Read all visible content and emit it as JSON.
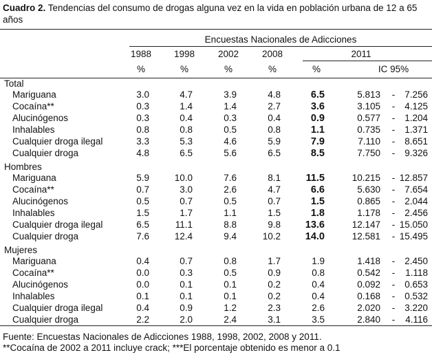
{
  "title": {
    "label": "Cuadro 2.",
    "text": "Tendencias del consumo de drogas alguna vez en la vida en población urbana de 12 a 65 años"
  },
  "table": {
    "group_header": "Encuestas Nacionales de Adicciones",
    "years": [
      "1988",
      "1998",
      "2002",
      "2008",
      "2011"
    ],
    "units": [
      "%",
      "%",
      "%",
      "%",
      "%",
      "IC 95%"
    ],
    "separator": "-",
    "sections": [
      {
        "name": "Total",
        "emphasis_2011": true,
        "rows": [
          {
            "label": "Mariguana",
            "values": [
              "3.0",
              "4.7",
              "3.9",
              "4.8",
              "6.5"
            ],
            "ci": [
              "5.813",
              "7.256"
            ]
          },
          {
            "label": "Cocaína**",
            "values": [
              "0.3",
              "1.4",
              "1.4",
              "2.7",
              "3.6"
            ],
            "ci": [
              "3.105",
              "4.125"
            ]
          },
          {
            "label": "Alucinógenos",
            "values": [
              "0.3",
              "0.4",
              "0.3",
              "0.4",
              "0.9"
            ],
            "ci": [
              "0.577",
              "1.204"
            ]
          },
          {
            "label": "Inhalables",
            "values": [
              "0.8",
              "0.8",
              "0.5",
              "0.8",
              "1.1"
            ],
            "ci": [
              "0.735",
              "1.371"
            ]
          },
          {
            "label": "Cualquier droga ilegal",
            "values": [
              "3.3",
              "5.3",
              "4.6",
              "5.9",
              "7.9"
            ],
            "ci": [
              "7.110",
              "8.651"
            ]
          },
          {
            "label": "Cualquier droga",
            "values": [
              "4.8",
              "6.5",
              "5.6",
              "6.5",
              "8.5"
            ],
            "ci": [
              "7.750",
              "9.326"
            ]
          }
        ]
      },
      {
        "name": "Hombres",
        "emphasis_2011": true,
        "rows": [
          {
            "label": "Mariguana",
            "values": [
              "5.9",
              "10.0",
              "7.6",
              "8.1",
              "11.5"
            ],
            "ci": [
              "10.215",
              "12.857"
            ]
          },
          {
            "label": "Cocaína**",
            "values": [
              "0.7",
              "3.0",
              "2.6",
              "4.7",
              "6.6"
            ],
            "ci": [
              "5.630",
              "7.654"
            ]
          },
          {
            "label": "Alucinógenos",
            "values": [
              "0.5",
              "0.7",
              "0.5",
              "0.7",
              "1.5"
            ],
            "ci": [
              "0.865",
              "2.044"
            ]
          },
          {
            "label": "Inhalables",
            "values": [
              "1.5",
              "1.7",
              "1.1",
              "1.5",
              "1.8"
            ],
            "ci": [
              "1.178",
              "2.456"
            ]
          },
          {
            "label": "Cualquier droga ilegal",
            "values": [
              "6.5",
              "11.1",
              "8.8",
              "9.8",
              "13.6"
            ],
            "ci": [
              "12.147",
              "15.050"
            ]
          },
          {
            "label": "Cualquier droga",
            "values": [
              "7.6",
              "12.4",
              "9.4",
              "10.2",
              "14.0"
            ],
            "ci": [
              "12.581",
              "15.495"
            ]
          }
        ]
      },
      {
        "name": "Mujeres",
        "emphasis_2011": false,
        "rows": [
          {
            "label": "Mariguana",
            "values": [
              "0.4",
              "0.7",
              "0.8",
              "1.7",
              "1.9"
            ],
            "ci": [
              "1.418",
              "2.450"
            ]
          },
          {
            "label": "Cocaína**",
            "values": [
              "0.0",
              "0.3",
              "0.5",
              "0.9",
              "0.8"
            ],
            "ci": [
              "0.542",
              "1.118"
            ]
          },
          {
            "label": "Alucinógenos",
            "values": [
              "0.0",
              "0.1",
              "0.1",
              "0.2",
              "0.4"
            ],
            "ci": [
              "0.092",
              "0.653"
            ]
          },
          {
            "label": "Inhalables",
            "values": [
              "0.1",
              "0.1",
              "0.1",
              "0.2",
              "0.4"
            ],
            "ci": [
              "0.168",
              "0.532"
            ]
          },
          {
            "label": "Cualquier droga ilegal",
            "values": [
              "0.4",
              "0.9",
              "1.2",
              "2.3",
              "2.6"
            ],
            "ci": [
              "2.020",
              "3.220"
            ]
          },
          {
            "label": "Cualquier droga",
            "values": [
              "2.2",
              "2.0",
              "2.4",
              "3.1",
              "3.5"
            ],
            "ci": [
              "2.840",
              "4.116"
            ]
          }
        ]
      }
    ]
  },
  "footnotes": [
    "Fuente: Encuestas Nacionales de Adicciones 1988, 1998, 2002, 2008 y 2011.",
    "**Cocaína de 2002 a 2011 incluye crack; ***El porcentaje obtenido es menor a 0.1"
  ]
}
